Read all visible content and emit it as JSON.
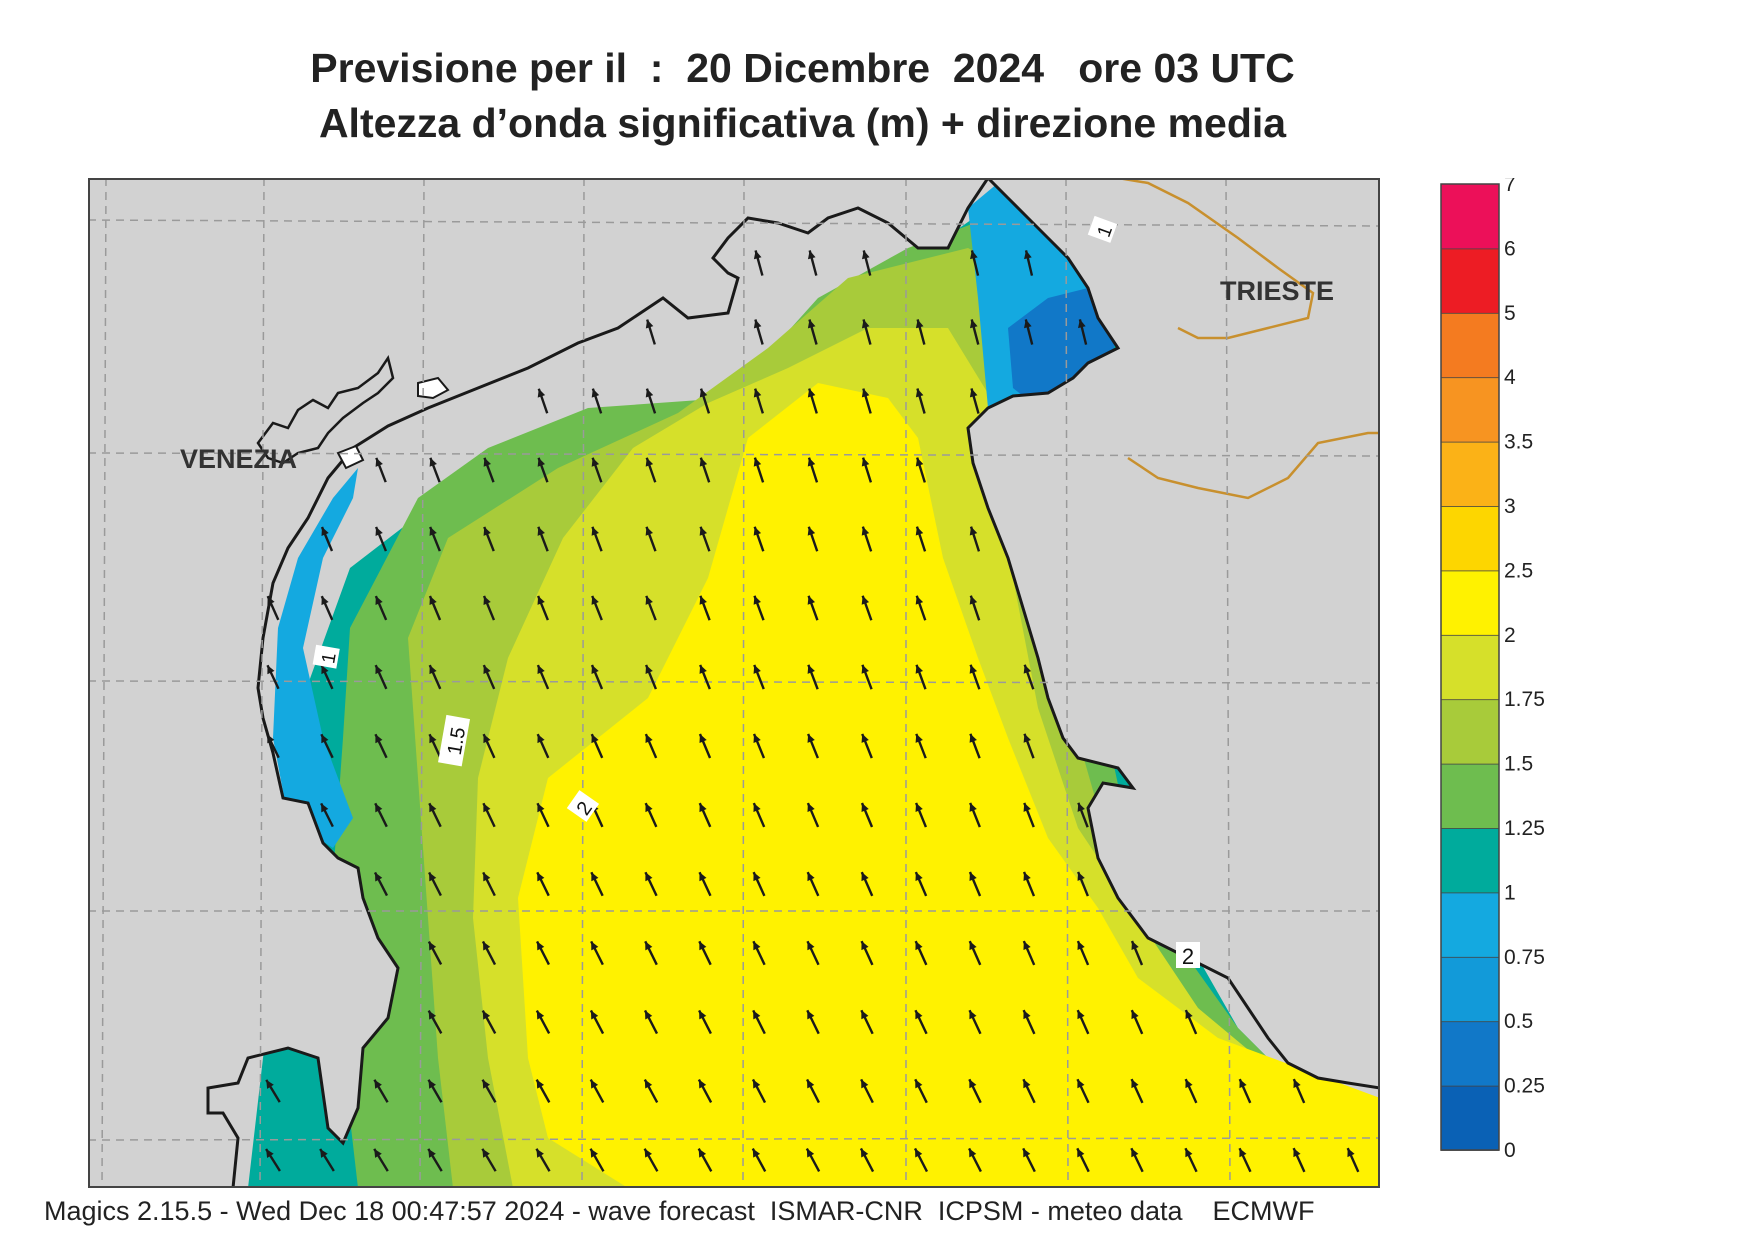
{
  "header": {
    "title_line1": "Previsione per il  :  20 Dicembre  2024   ore 03 UTC",
    "title_line2": "Altezza d’onda significativa (m) + direzione media"
  },
  "map": {
    "place_labels": [
      "VENEZIA",
      "TRIESTE"
    ],
    "contour_labels": [
      "1",
      "1",
      "1.5",
      "2",
      "2"
    ],
    "wave_direction": "north-northwest",
    "colors": {
      "land": "#d2d2d2",
      "coastline": "#1a1a1a",
      "border": "#c8902e",
      "gridline": "#9a9a9a",
      "arrow": "#1a1a1a"
    }
  },
  "legend": {
    "ticks": [
      "7",
      "6",
      "5",
      "4",
      "3.5",
      "3",
      "2.5",
      "2",
      "1.75",
      "1.5",
      "1.25",
      "1",
      "0.75",
      "0.5",
      "0.25",
      "0"
    ],
    "colors": [
      "#0a61b5",
      "#1178c8",
      "#129ad9",
      "#14a9e0",
      "#00ab9c",
      "#6ebd4f",
      "#a8cb3a",
      "#d6e02a",
      "#fff200",
      "#fdd600",
      "#fbb217",
      "#f79421",
      "#f47b20",
      "#ed1c24",
      "#ec1059"
    ]
  },
  "footer": {
    "text": "Magics 2.15.5 - Wed Dec 18 00:47:57 2024 - wave forecast  ISMAR-CNR  ICPSM - meteo data    ECMWF"
  }
}
